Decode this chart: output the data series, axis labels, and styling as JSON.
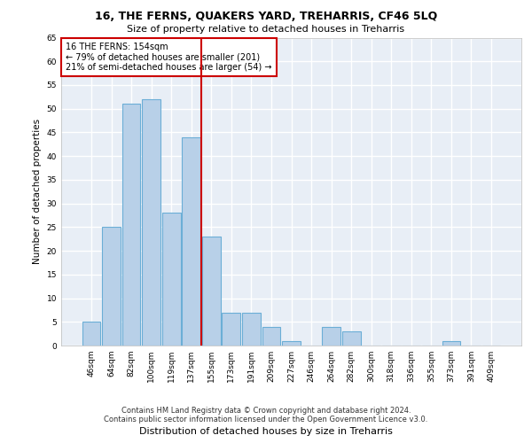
{
  "title1": "16, THE FERNS, QUAKERS YARD, TREHARRIS, CF46 5LQ",
  "title2": "Size of property relative to detached houses in Treharris",
  "xlabel": "Distribution of detached houses by size in Treharris",
  "ylabel": "Number of detached properties",
  "categories": [
    "46sqm",
    "64sqm",
    "82sqm",
    "100sqm",
    "119sqm",
    "137sqm",
    "155sqm",
    "173sqm",
    "191sqm",
    "209sqm",
    "227sqm",
    "246sqm",
    "264sqm",
    "282sqm",
    "300sqm",
    "318sqm",
    "336sqm",
    "355sqm",
    "373sqm",
    "391sqm",
    "409sqm"
  ],
  "values": [
    5,
    25,
    51,
    52,
    28,
    44,
    23,
    7,
    7,
    4,
    1,
    0,
    4,
    3,
    0,
    0,
    0,
    0,
    1,
    0,
    0
  ],
  "bar_color": "#b8d0e8",
  "bar_edge_color": "#6baed6",
  "bg_color": "#e8eef6",
  "grid_color": "#ffffff",
  "vline_x_index": 6,
  "vline_color": "#cc0000",
  "annotation_text": "16 THE FERNS: 154sqm\n← 79% of detached houses are smaller (201)\n21% of semi-detached houses are larger (54) →",
  "annotation_box_color": "#ffffff",
  "annotation_box_edge": "#cc0000",
  "footer1": "Contains HM Land Registry data © Crown copyright and database right 2024.",
  "footer2": "Contains public sector information licensed under the Open Government Licence v3.0.",
  "ylim": [
    0,
    65
  ],
  "yticks": [
    0,
    5,
    10,
    15,
    20,
    25,
    30,
    35,
    40,
    45,
    50,
    55,
    60,
    65
  ]
}
